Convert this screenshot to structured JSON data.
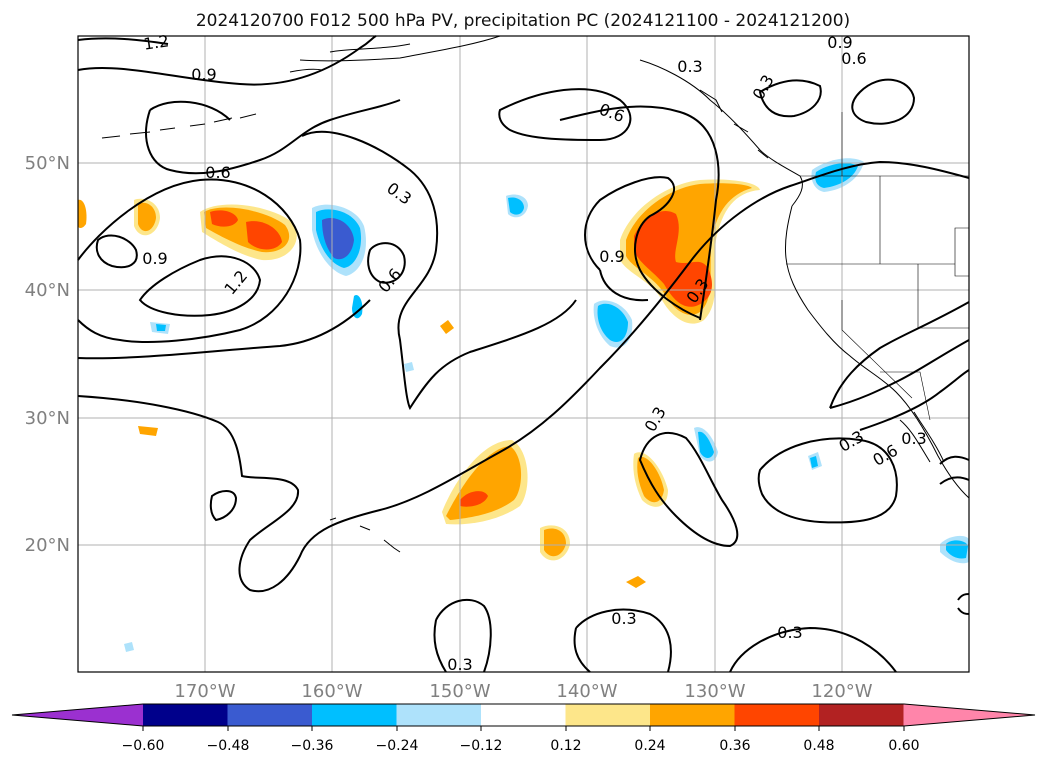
{
  "title": "2024120700 F012 500 hPa PV, precipitation PC (2024121100 - 2024121200)",
  "lat_labels": [
    "50°N",
    "40°N",
    "30°N",
    "20°N"
  ],
  "lon_labels": [
    "170°W",
    "160°W",
    "150°W",
    "140°W",
    "130°W",
    "120°W"
  ],
  "colorbar": {
    "tick_labels": [
      "−0.60",
      "−0.48",
      "−0.36",
      "−0.24",
      "−0.12",
      "0.12",
      "0.24",
      "0.36",
      "0.48",
      "0.60"
    ],
    "colors": [
      "#9b30d0",
      "#00008b",
      "#3a5bd0",
      "#00bfff",
      "#aee2fb",
      "#ffffff",
      "#fde68a",
      "#ffa500",
      "#ff4500",
      "#b22222",
      "#ff85aa"
    ]
  },
  "contour_labels": [
    {
      "text": "1.2"
    },
    {
      "text": "0.9"
    },
    {
      "text": "0.6"
    },
    {
      "text": "0.9"
    },
    {
      "text": "1.2"
    },
    {
      "text": "0.3"
    },
    {
      "text": "0.6"
    },
    {
      "text": "0.6"
    },
    {
      "text": "0.3"
    },
    {
      "text": "0.9"
    },
    {
      "text": "0.6"
    },
    {
      "text": "0.3"
    },
    {
      "text": "0.9"
    },
    {
      "text": "0.3"
    },
    {
      "text": "0.3"
    },
    {
      "text": "0.3"
    },
    {
      "text": "0.3"
    },
    {
      "text": "0.3"
    },
    {
      "text": "0.6"
    },
    {
      "text": "0.3"
    },
    {
      "text": "0.3"
    }
  ]
}
